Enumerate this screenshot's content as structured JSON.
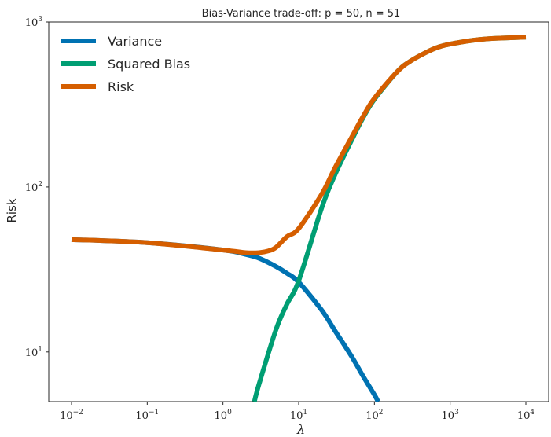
{
  "chart_data": {
    "type": "line",
    "title": "Bias-Variance trade-off: p = 50, n = 51",
    "xlabel": "λ",
    "ylabel": "Risk",
    "xscale": "log",
    "yscale": "log",
    "xlim": [
      0.005,
      20000
    ],
    "ylim": [
      5,
      1000
    ],
    "grid": false,
    "legend_position": "top-left",
    "x_ticks": [
      {
        "base": "10",
        "exp": "−2",
        "value": 0.01
      },
      {
        "base": "10",
        "exp": "−1",
        "value": 0.1
      },
      {
        "base": "10",
        "exp": "0",
        "value": 1
      },
      {
        "base": "10",
        "exp": "1",
        "value": 10
      },
      {
        "base": "10",
        "exp": "2",
        "value": 100
      },
      {
        "base": "10",
        "exp": "3",
        "value": 1000
      },
      {
        "base": "10",
        "exp": "4",
        "value": 10000
      }
    ],
    "y_ticks": [
      {
        "base": "10",
        "exp": "1",
        "value": 10
      },
      {
        "base": "10",
        "exp": "2",
        "value": 100
      },
      {
        "base": "10",
        "exp": "3",
        "value": 1000
      }
    ],
    "series": [
      {
        "name": "Variance",
        "color": "#0072b2",
        "x": [
          0.01,
          0.1,
          1,
          2,
          3,
          5,
          7,
          10,
          20,
          30,
          50,
          70,
          100,
          112
        ],
        "y": [
          48,
          46,
          41.5,
          39,
          37,
          33,
          30,
          26.5,
          18,
          13.5,
          9.4,
          7.2,
          5.5,
          5.0
        ]
      },
      {
        "name": "Squared Bias",
        "color": "#009e73",
        "x": [
          2.6,
          3,
          5,
          7,
          10,
          20,
          30,
          50,
          70,
          100,
          200,
          300,
          500,
          700,
          1000,
          2000,
          3000,
          5000,
          10000
        ],
        "y": [
          5.0,
          6.4,
          13.6,
          19.5,
          27,
          74,
          118,
          192,
          260,
          340,
          500,
          580,
          660,
          705,
          735,
          775,
          790,
          800,
          810
        ]
      },
      {
        "name": "Risk",
        "color": "#d55e00",
        "x": [
          0.01,
          0.1,
          1,
          2,
          3,
          4,
          5,
          7,
          10,
          20,
          30,
          50,
          70,
          100,
          200,
          300,
          500,
          700,
          1000,
          2000,
          3000,
          5000,
          10000
        ],
        "y": [
          48,
          46,
          41.5,
          40,
          40,
          41,
          43,
          50,
          56,
          90,
          130,
          200,
          265,
          345,
          500,
          580,
          660,
          705,
          735,
          775,
          790,
          800,
          810
        ]
      }
    ]
  }
}
